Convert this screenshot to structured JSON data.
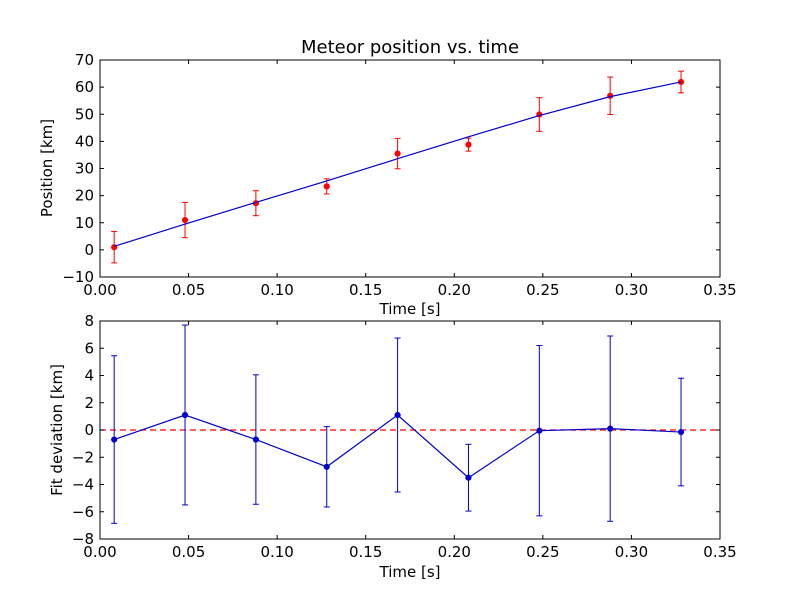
{
  "colors": {
    "top_points": "#ff0000",
    "top_fit_line": "#0000cc",
    "bottom_series": "#0000cc",
    "zero_line": "#ff0000"
  },
  "chart_data": [
    {
      "type": "scatter",
      "title": "Meteor position vs. time",
      "xlabel": "Time [s]",
      "ylabel": "Position [km]",
      "xlim": [
        0.0,
        0.35
      ],
      "ylim": [
        -10,
        70
      ],
      "xticks": [
        "0.00",
        "0.05",
        "0.10",
        "0.15",
        "0.20",
        "0.25",
        "0.30",
        "0.35"
      ],
      "yticks": [
        "−10",
        "0",
        "10",
        "20",
        "30",
        "40",
        "50",
        "60",
        "70"
      ],
      "grid": false,
      "series": [
        {
          "type": "scatter_errorbar",
          "x": [
            0.008,
            0.048,
            0.088,
            0.128,
            0.168,
            0.208,
            0.248,
            0.288,
            0.328
          ],
          "y": [
            1.0,
            11.0,
            17.2,
            23.4,
            35.5,
            38.8,
            49.9,
            56.8,
            61.9
          ],
          "yerr": [
            5.8,
            6.5,
            4.6,
            2.8,
            5.6,
            2.4,
            6.2,
            6.9,
            4.0
          ]
        },
        {
          "type": "line",
          "x": [
            0.008,
            0.048,
            0.088,
            0.128,
            0.168,
            0.208,
            0.248,
            0.288,
            0.328
          ],
          "y": [
            1.3,
            9.5,
            17.5,
            25.4,
            33.6,
            41.7,
            49.5,
            56.5,
            61.9
          ]
        }
      ]
    },
    {
      "type": "line",
      "title": "",
      "xlabel": "Time [s]",
      "ylabel": "Fit deviation [km]",
      "xlim": [
        0.0,
        0.35
      ],
      "ylim": [
        -8,
        8
      ],
      "xticks": [
        "0.00",
        "0.05",
        "0.10",
        "0.15",
        "0.20",
        "0.25",
        "0.30",
        "0.35"
      ],
      "yticks": [
        "−8",
        "−6",
        "−4",
        "−2",
        "0",
        "2",
        "4",
        "6",
        "8"
      ],
      "grid": false,
      "series": [
        {
          "type": "line_errorbar",
          "x": [
            0.008,
            0.048,
            0.088,
            0.128,
            0.168,
            0.208,
            0.248,
            0.288,
            0.328
          ],
          "y": [
            -0.7,
            1.1,
            -0.7,
            -2.7,
            1.1,
            -3.5,
            -0.05,
            0.1,
            -0.15
          ],
          "yerr": [
            6.15,
            6.6,
            4.75,
            2.95,
            5.65,
            2.45,
            6.25,
            6.8,
            3.95
          ]
        }
      ],
      "reference_line": {
        "y": 0,
        "style": "dashed"
      }
    }
  ]
}
